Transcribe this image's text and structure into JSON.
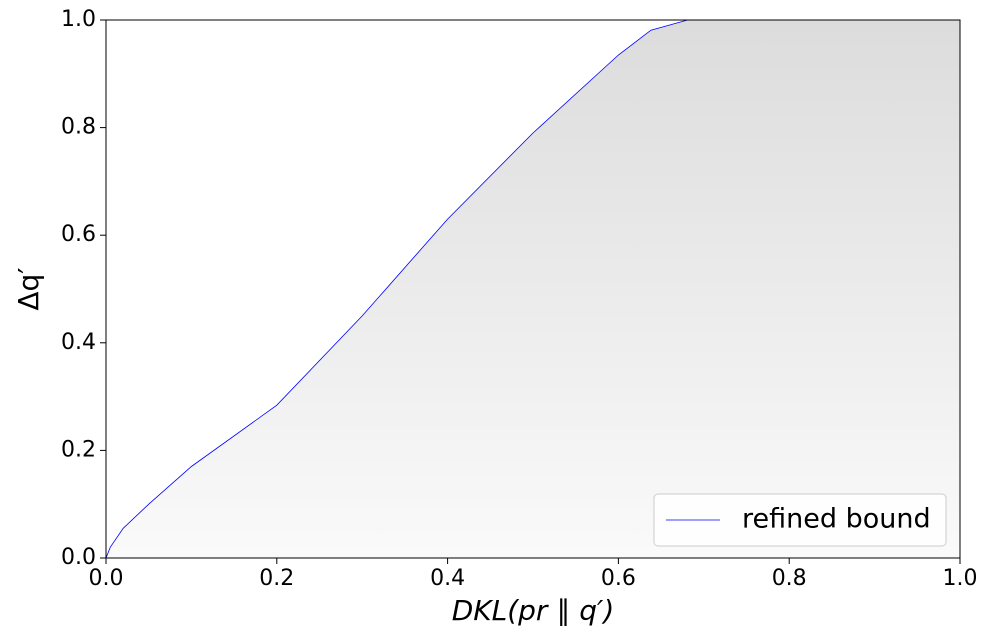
{
  "chart_data": {
    "type": "line",
    "x_label": "DKL(pr ∥ q′)",
    "y_label": "Δq′",
    "x": [
      0,
      0.005,
      0.02,
      0.05,
      0.1,
      0.2,
      0.3,
      0.4,
      0.5,
      0.6,
      0.638,
      0.681,
      1.0
    ],
    "series": [
      {
        "name": "refined bound",
        "color": "#0000ff",
        "values": [
          0,
          0.02,
          0.055,
          0.1,
          0.17,
          0.284,
          0.45,
          0.63,
          0.79,
          0.935,
          0.981,
          1.0,
          1.0
        ]
      }
    ],
    "xlim": [
      0,
      1
    ],
    "ylim": [
      0,
      1
    ],
    "xticks": [
      {
        "value": 0,
        "label": "0.0"
      },
      0.2,
      0.4,
      0.6,
      0.8,
      {
        "value": 1,
        "label": "1.0"
      }
    ],
    "yticks": [
      {
        "value": 0,
        "label": "0.0"
      },
      0.2,
      0.4,
      0.6,
      0.8,
      {
        "value": 1,
        "label": "1.0"
      }
    ],
    "legend": "lower right",
    "grid": false
  }
}
